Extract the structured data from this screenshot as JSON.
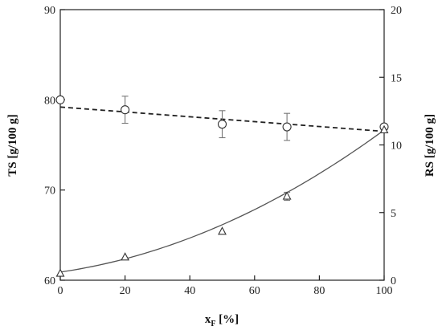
{
  "chart_data": {
    "type": "scatter",
    "xlabel": "x",
    "xlabel_sub": "F",
    "xlabel_unit": " [%]",
    "ylabel_left": "TS [g/100 g]",
    "ylabel_right": "RS [g/100 g]",
    "x_ticks": [
      "0",
      "20",
      "40",
      "60",
      "80",
      "100"
    ],
    "y_left_ticks": [
      "60",
      "70",
      "80",
      "90"
    ],
    "y_right_ticks": [
      "0",
      "5",
      "10",
      "15",
      "20"
    ],
    "xlim": [
      0,
      100
    ],
    "ylim_left": [
      60,
      90
    ],
    "ylim_right": [
      0,
      20
    ],
    "grid": false,
    "series": [
      {
        "axis": "left",
        "marker": "circle",
        "x": [
          0,
          20,
          50,
          70,
          100
        ],
        "y": [
          80.0,
          78.9,
          77.3,
          77.0,
          77.0
        ],
        "yerr": [
          0,
          1.5,
          1.5,
          1.5,
          0
        ],
        "fit": {
          "style": "dashed",
          "kind": "linear",
          "x": [
            0,
            100
          ],
          "y": [
            79.2,
            76.5
          ]
        }
      },
      {
        "axis": "right",
        "marker": "triangle",
        "x": [
          0,
          20,
          50,
          70,
          100
        ],
        "y": [
          0.5,
          1.7,
          3.6,
          6.2,
          11.1
        ],
        "yerr": [
          0,
          0,
          0,
          0.3,
          0
        ],
        "fit": {
          "style": "solid",
          "kind": "quadratic",
          "coef": [
            0.6,
            0.035,
            0.0007
          ]
        }
      }
    ]
  }
}
